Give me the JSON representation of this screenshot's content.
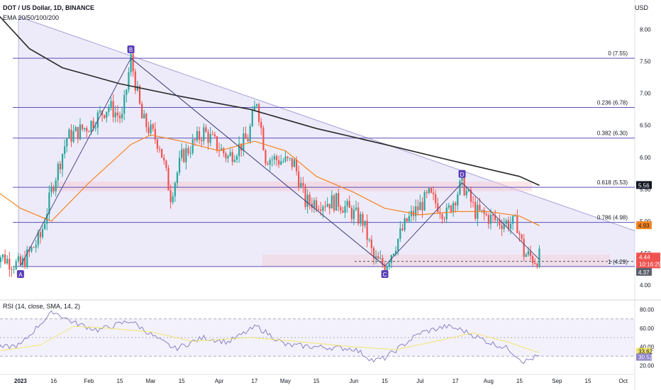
{
  "header": {
    "symbol_line": "DOT / US Dollar, 1D, BINANCE",
    "ema_line": "EMA 20/50/100/200",
    "rsi_line": "RSI (14, close, SMA, 14, 2)",
    "currency": "USD"
  },
  "colors": {
    "up": "#26a69a",
    "down": "#ef5350",
    "fib_line": "#5b4fb8",
    "fill": "#9c8fdc",
    "ema_orange": "#f5841f",
    "ema_black": "#2a2a2a",
    "rsi_line": "#8c82c8",
    "rsi_sma": "#f2e66e",
    "last_price": "#ef5350"
  },
  "chart_data": [
    {
      "type": "candlestick",
      "title": "DOT / US Dollar, 1D, BINANCE",
      "price_axis": {
        "ticks": [
          4.0,
          4.5,
          5.0,
          5.5,
          6.0,
          6.5,
          7.0,
          7.5,
          8.0
        ],
        "labels": [
          "4.00",
          "4.50",
          "5.00",
          "5.50",
          "6.00",
          "6.50",
          "7.00",
          "7.50",
          "8.00"
        ],
        "ylim": [
          3.8,
          8.35
        ]
      },
      "time_axis": {
        "labels": [
          "2023",
          "16",
          "Feb",
          "15",
          "Mar",
          "15",
          "Apr",
          "17",
          "May",
          "15",
          "Jun",
          "15",
          "Jul",
          "17",
          "Aug",
          "15",
          "Sep",
          "15",
          "Oct"
        ]
      },
      "price_path": [
        {
          "date": "2022-12-20",
          "price": 4.52
        },
        {
          "date": "2022-12-28",
          "price": 4.35
        },
        {
          "date": "2023-01-01",
          "price": 4.3
        },
        {
          "date": "2023-01-10",
          "price": 4.75
        },
        {
          "date": "2023-01-16",
          "price": 5.6
        },
        {
          "date": "2023-01-22",
          "price": 6.3
        },
        {
          "date": "2023-02-01",
          "price": 6.5
        },
        {
          "date": "2023-02-10",
          "price": 6.8
        },
        {
          "date": "2023-02-16",
          "price": 6.6
        },
        {
          "date": "2023-02-20",
          "price": 7.55
        },
        {
          "date": "2023-02-25",
          "price": 6.6
        },
        {
          "date": "2023-03-05",
          "price": 6.2
        },
        {
          "date": "2023-03-10",
          "price": 5.4
        },
        {
          "date": "2023-03-15",
          "price": 6.0
        },
        {
          "date": "2023-03-25",
          "price": 6.4
        },
        {
          "date": "2023-04-05",
          "price": 6.0
        },
        {
          "date": "2023-04-14",
          "price": 6.3
        },
        {
          "date": "2023-04-18",
          "price": 6.9
        },
        {
          "date": "2023-04-22",
          "price": 6.0
        },
        {
          "date": "2023-05-05",
          "price": 5.9
        },
        {
          "date": "2023-05-10",
          "price": 5.3
        },
        {
          "date": "2023-05-25",
          "price": 5.3
        },
        {
          "date": "2023-06-05",
          "price": 5.0
        },
        {
          "date": "2023-06-10",
          "price": 4.4
        },
        {
          "date": "2023-06-15",
          "price": 4.3
        },
        {
          "date": "2023-06-25",
          "price": 5.0
        },
        {
          "date": "2023-07-05",
          "price": 5.4
        },
        {
          "date": "2023-07-13",
          "price": 5.1
        },
        {
          "date": "2023-07-20",
          "price": 5.6
        },
        {
          "date": "2023-07-26",
          "price": 5.15
        },
        {
          "date": "2023-08-05",
          "price": 5.0
        },
        {
          "date": "2023-08-14",
          "price": 4.95
        },
        {
          "date": "2023-08-17",
          "price": 4.5
        },
        {
          "date": "2023-08-22",
          "price": 4.4
        },
        {
          "date": "2023-08-24",
          "price": 4.44
        }
      ],
      "fibonacci": [
        {
          "label": "0 (7.55)",
          "level": 7.55
        },
        {
          "label": "0.236 (6.78)",
          "level": 6.78
        },
        {
          "label": "0.382 (6.30)",
          "level": 6.3
        },
        {
          "label": "0.618 (5.53)",
          "level": 5.53
        },
        {
          "label": "0.786 (4.98)",
          "level": 4.98
        },
        {
          "label": "1 (4.29)",
          "level": 4.29
        }
      ],
      "pattern_points": [
        {
          "label": "A",
          "date": "2023-01-01",
          "price": 4.3
        },
        {
          "label": "B",
          "date": "2023-02-20",
          "price": 7.55
        },
        {
          "label": "C",
          "date": "2023-06-15",
          "price": 4.3
        },
        {
          "label": "D",
          "date": "2023-07-20",
          "price": 5.6
        }
      ],
      "series": [
        {
          "name": "EMA 50",
          "points": [
            {
              "date": "2022-12-20",
              "price": 5.5
            },
            {
              "date": "2023-01-01",
              "price": 5.2
            },
            {
              "date": "2023-01-15",
              "price": 5.0
            },
            {
              "date": "2023-02-01",
              "price": 5.6
            },
            {
              "date": "2023-02-20",
              "price": 6.2
            },
            {
              "date": "2023-03-01",
              "price": 6.35
            },
            {
              "date": "2023-03-15",
              "price": 6.25
            },
            {
              "date": "2023-04-01",
              "price": 6.1
            },
            {
              "date": "2023-04-17",
              "price": 6.25
            },
            {
              "date": "2023-05-01",
              "price": 6.1
            },
            {
              "date": "2023-05-15",
              "price": 5.7
            },
            {
              "date": "2023-06-01",
              "price": 5.45
            },
            {
              "date": "2023-06-15",
              "price": 5.2
            },
            {
              "date": "2023-07-01",
              "price": 5.1
            },
            {
              "date": "2023-07-17",
              "price": 5.15
            },
            {
              "date": "2023-08-01",
              "price": 5.15
            },
            {
              "date": "2023-08-15",
              "price": 5.08
            },
            {
              "date": "2023-08-24",
              "price": 4.93
            }
          ]
        },
        {
          "name": "EMA 200",
          "points": [
            {
              "date": "2022-12-20",
              "price": 8.3
            },
            {
              "date": "2023-01-05",
              "price": 7.7
            },
            {
              "date": "2023-01-20",
              "price": 7.4
            },
            {
              "date": "2023-02-15",
              "price": 7.15
            },
            {
              "date": "2023-03-15",
              "price": 6.95
            },
            {
              "date": "2023-04-15",
              "price": 6.75
            },
            {
              "date": "2023-05-15",
              "price": 6.45
            },
            {
              "date": "2023-06-15",
              "price": 6.2
            },
            {
              "date": "2023-07-15",
              "price": 5.95
            },
            {
              "date": "2023-08-15",
              "price": 5.7
            },
            {
              "date": "2023-08-24",
              "price": 5.56
            }
          ]
        }
      ],
      "price_labels": [
        {
          "name": "EMA 200",
          "value": "5.56"
        },
        {
          "name": "EMA 50",
          "value": "4.93"
        },
        {
          "name": "last",
          "value": "4.44",
          "countdown": "10:16:25"
        },
        {
          "name": "low",
          "value": "4.37"
        }
      ]
    },
    {
      "type": "line",
      "title": "RSI (14, close, SMA, 14, 2)",
      "ylim": [
        15,
        85
      ],
      "y_ticks": [
        20,
        40,
        60,
        80
      ],
      "y_tick_labels": [
        "20.00",
        "40.00",
        "60.00",
        "80.00"
      ],
      "bands": [
        70,
        50,
        30
      ],
      "series": [
        {
          "name": "RSI",
          "points": [
            {
              "date": "2022-12-20",
              "value": 38
            },
            {
              "date": "2023-01-01",
              "value": 42
            },
            {
              "date": "2023-01-10",
              "value": 65
            },
            {
              "date": "2023-01-16",
              "value": 78
            },
            {
              "date": "2023-01-25",
              "value": 66
            },
            {
              "date": "2023-02-05",
              "value": 58
            },
            {
              "date": "2023-02-20",
              "value": 68
            },
            {
              "date": "2023-03-05",
              "value": 47
            },
            {
              "date": "2023-03-12",
              "value": 38
            },
            {
              "date": "2023-03-25",
              "value": 50
            },
            {
              "date": "2023-04-05",
              "value": 45
            },
            {
              "date": "2023-04-18",
              "value": 62
            },
            {
              "date": "2023-05-01",
              "value": 42
            },
            {
              "date": "2023-05-15",
              "value": 40
            },
            {
              "date": "2023-06-01",
              "value": 38
            },
            {
              "date": "2023-06-10",
              "value": 25
            },
            {
              "date": "2023-06-15",
              "value": 28
            },
            {
              "date": "2023-07-01",
              "value": 55
            },
            {
              "date": "2023-07-13",
              "value": 62
            },
            {
              "date": "2023-07-20",
              "value": 58
            },
            {
              "date": "2023-08-01",
              "value": 45
            },
            {
              "date": "2023-08-10",
              "value": 38
            },
            {
              "date": "2023-08-17",
              "value": 24
            },
            {
              "date": "2023-08-24",
              "value": 30.52
            }
          ]
        },
        {
          "name": "RSI SMA",
          "points": [
            {
              "date": "2022-12-20",
              "value": 35
            },
            {
              "date": "2023-01-10",
              "value": 42
            },
            {
              "date": "2023-01-25",
              "value": 62
            },
            {
              "date": "2023-02-10",
              "value": 60
            },
            {
              "date": "2023-03-01",
              "value": 56
            },
            {
              "date": "2023-03-20",
              "value": 46
            },
            {
              "date": "2023-04-15",
              "value": 50
            },
            {
              "date": "2023-05-05",
              "value": 46
            },
            {
              "date": "2023-06-01",
              "value": 40
            },
            {
              "date": "2023-06-20",
              "value": 37
            },
            {
              "date": "2023-07-10",
              "value": 47
            },
            {
              "date": "2023-07-25",
              "value": 55
            },
            {
              "date": "2023-08-10",
              "value": 45
            },
            {
              "date": "2023-08-24",
              "value": 33.62
            }
          ]
        }
      ],
      "value_labels": [
        "33.62",
        "30.52"
      ]
    }
  ]
}
